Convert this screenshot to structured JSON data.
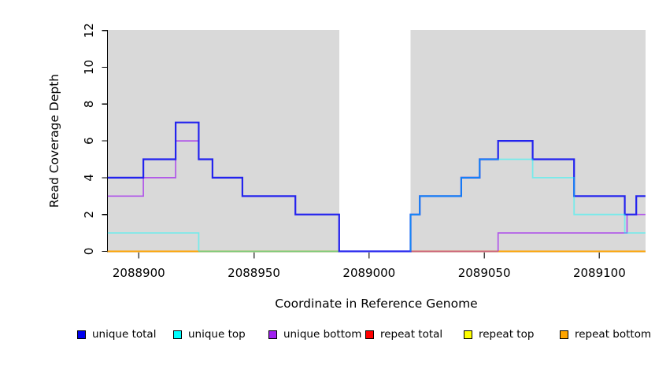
{
  "chart_data": {
    "type": "line",
    "step": true,
    "title": "",
    "xlabel": "Coordinate in Reference Genome",
    "ylabel": "Read Coverage Depth",
    "xlim": [
      2088886.5,
      2089120
    ],
    "ylim": [
      0,
      12
    ],
    "x_ticks": [
      2088900,
      2088950,
      2089000,
      2089050,
      2089100
    ],
    "y_ticks": [
      0,
      2,
      4,
      6,
      8,
      10,
      12
    ],
    "grid": false,
    "background": {
      "plot_color": "#ffffff",
      "shaded_color": "#d9d9d9",
      "shaded_regions": [
        [
          2088886.5,
          2088987
        ],
        [
          2089018,
          2089120
        ]
      ],
      "unshaded_gap": [
        2088987,
        2089018
      ]
    },
    "series": [
      {
        "label": "unique total",
        "legend_color": "#0000EE",
        "stroke": "#2323ee",
        "stroke_width": 2.2,
        "stroke_opacity": 1,
        "layer": 5,
        "paths": [
          [
            [
              2088886.5,
              4
            ],
            [
              2088902,
              4
            ],
            [
              2088902,
              5
            ],
            [
              2088916,
              5
            ],
            [
              2088916,
              7
            ],
            [
              2088926,
              7
            ],
            [
              2088926,
              5
            ],
            [
              2088932,
              5
            ],
            [
              2088932,
              4
            ],
            [
              2088945,
              4
            ],
            [
              2088945,
              3
            ],
            [
              2088968,
              3
            ],
            [
              2088968,
              2
            ],
            [
              2088987,
              2
            ],
            [
              2088987,
              0
            ],
            [
              2089018,
              0
            ],
            [
              2089018,
              2
            ],
            [
              2089022,
              2
            ],
            [
              2089022,
              3
            ],
            [
              2089040,
              3
            ],
            [
              2089040,
              4
            ],
            [
              2089048,
              4
            ],
            [
              2089048,
              5
            ],
            [
              2089056,
              5
            ],
            [
              2089056,
              6
            ],
            [
              2089071,
              6
            ],
            [
              2089071,
              5
            ],
            [
              2089089,
              5
            ],
            [
              2089089,
              3
            ],
            [
              2089111,
              3
            ],
            [
              2089111,
              2
            ],
            [
              2089116,
              2
            ],
            [
              2089116,
              3
            ],
            [
              2089120,
              3
            ]
          ]
        ]
      },
      {
        "label": "unique top",
        "legend_color": "#00FFFF",
        "stroke": "#00ffff",
        "stroke_width": 1.8,
        "stroke_opacity": 0.45,
        "layer": 6,
        "paths": [
          [
            [
              2088886.5,
              1
            ],
            [
              2088926,
              1
            ],
            [
              2088926,
              0
            ]
          ],
          [
            [
              2089018,
              0
            ],
            [
              2089018,
              2
            ],
            [
              2089022,
              2
            ],
            [
              2089022,
              3
            ],
            [
              2089040,
              3
            ],
            [
              2089040,
              4
            ],
            [
              2089048,
              4
            ],
            [
              2089048,
              5
            ],
            [
              2089071,
              5
            ],
            [
              2089071,
              4
            ],
            [
              2089089,
              4
            ],
            [
              2089089,
              2
            ],
            [
              2089111,
              2
            ],
            [
              2089111,
              1
            ],
            [
              2089120,
              1
            ]
          ]
        ]
      },
      {
        "label": "unique bottom",
        "legend_color": "#A020F0",
        "stroke": "#a020f0",
        "stroke_width": 1.7,
        "stroke_opacity": 0.7,
        "layer": 4,
        "paths": [
          [
            [
              2088886.5,
              3
            ],
            [
              2088902,
              3
            ],
            [
              2088902,
              4
            ],
            [
              2088916,
              4
            ],
            [
              2088916,
              6
            ],
            [
              2088926,
              6
            ],
            [
              2088926,
              5
            ],
            [
              2088932,
              5
            ],
            [
              2088932,
              4
            ],
            [
              2088945,
              4
            ],
            [
              2088945,
              3
            ],
            [
              2088968,
              3
            ],
            [
              2088968,
              2
            ],
            [
              2088987,
              2
            ],
            [
              2088987,
              0
            ]
          ],
          [
            [
              2089056,
              0
            ],
            [
              2089056,
              1
            ],
            [
              2089112,
              1
            ],
            [
              2089112,
              2
            ],
            [
              2089120,
              2
            ]
          ]
        ]
      },
      {
        "label": "repeat total",
        "legend_color": "#FF0000",
        "stroke": "#ff0000",
        "stroke_width": 1.3,
        "stroke_opacity": 1,
        "layer": 2,
        "paths": [
          [
            [
              2088886.5,
              0
            ],
            [
              2089120,
              0
            ]
          ]
        ]
      },
      {
        "label": "repeat top",
        "legend_color": "#FFFF00",
        "stroke": "#ffff00",
        "stroke_width": 1.3,
        "stroke_opacity": 1,
        "layer": 1,
        "paths": [
          [
            [
              2088886.5,
              0
            ],
            [
              2089120,
              0
            ]
          ]
        ]
      },
      {
        "label": "repeat bottom",
        "legend_color": "#FFA500",
        "stroke": "#ffa500",
        "stroke_width": 1.7,
        "stroke_opacity": 1,
        "layer": 3,
        "paths": [
          [
            [
              2088886.5,
              0
            ],
            [
              2089120,
              0
            ]
          ]
        ]
      }
    ],
    "zero_line_segments": [
      {
        "color": "#FFA500",
        "from": 2088886.5,
        "to": 2088926
      },
      {
        "color": "#77cc77",
        "from": 2088926,
        "to": 2088987
      },
      {
        "color": "#cc5f78",
        "from": 2089018,
        "to": 2089056
      },
      {
        "color": "#FFA500",
        "from": 2089056,
        "to": 2089120
      }
    ],
    "legend": {
      "position": "bottom"
    }
  }
}
